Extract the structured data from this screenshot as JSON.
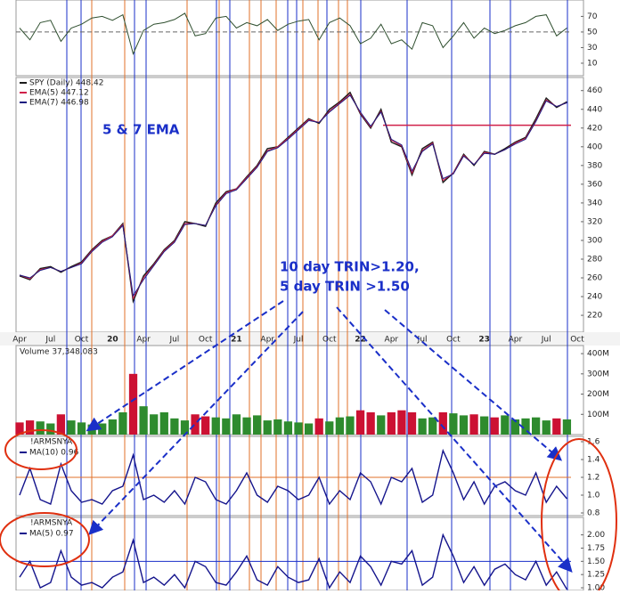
{
  "chart_data": [
    {
      "type": "line",
      "color": "#2f4f2f",
      "reference_line": 50,
      "ylim": [
        -6,
        91
      ],
      "yticks": [
        70,
        50,
        30,
        10
      ],
      "values": [
        55,
        40,
        62,
        65,
        38,
        55,
        60,
        68,
        70,
        65,
        72,
        22,
        52,
        60,
        62,
        66,
        74,
        45,
        48,
        68,
        70,
        55,
        62,
        58,
        66,
        52,
        60,
        64,
        66,
        40,
        62,
        68,
        58,
        35,
        42,
        60,
        35,
        40,
        28,
        62,
        58,
        30,
        45,
        62,
        42,
        55,
        48,
        52,
        58,
        62,
        70,
        72,
        45,
        55,
        null
      ]
    },
    {
      "type": "line",
      "reference_line": 423,
      "reference_color": "#d0204a",
      "ylim": [
        202,
        474
      ],
      "yticks": [
        460,
        440,
        420,
        400,
        380,
        360,
        340,
        320,
        300,
        280,
        260,
        240,
        220
      ],
      "categories": [
        "Apr",
        null,
        null,
        "Jul",
        null,
        null,
        "Oct",
        null,
        null,
        "20",
        null,
        null,
        "Apr",
        null,
        null,
        "Jul",
        null,
        null,
        "Oct",
        null,
        null,
        "21",
        null,
        null,
        "Apr",
        null,
        null,
        "Jul",
        null,
        null,
        "Oct",
        null,
        null,
        "22",
        null,
        null,
        "Apr",
        null,
        null,
        "Jul",
        null,
        null,
        "Oct",
        null,
        null,
        "23",
        null,
        null,
        "Apr",
        null,
        null,
        "Jul",
        null,
        null,
        "Oct"
      ],
      "annotations": [
        "5 & 7 EMA",
        "10 day TRIN>1.20,",
        "5 day TRIN >1.50"
      ],
      "series": [
        {
          "name": "SPY (Daily) 448.42",
          "color": "#1b1b1b",
          "values": [
            262,
            258,
            270,
            272,
            266,
            272,
            277,
            290,
            300,
            305,
            318,
            235,
            262,
            275,
            290,
            300,
            320,
            318,
            315,
            340,
            352,
            355,
            368,
            380,
            398,
            400,
            410,
            420,
            430,
            425,
            440,
            448,
            458,
            435,
            420,
            440,
            405,
            400,
            370,
            398,
            405,
            362,
            372,
            392,
            380,
            395,
            392,
            398,
            405,
            410,
            430,
            452,
            442,
            448,
            null
          ]
        },
        {
          "name": "EMA(5) 447.12",
          "color": "#d0204a",
          "values": [
            263,
            259,
            269,
            271,
            267,
            271,
            276,
            289,
            299,
            305,
            317,
            238,
            260,
            274,
            289,
            299,
            318,
            318,
            316,
            338,
            351,
            355,
            367,
            379,
            396,
            400,
            409,
            419,
            429,
            426,
            438,
            447,
            456,
            436,
            421,
            438,
            407,
            401,
            372,
            396,
            404,
            364,
            372,
            391,
            381,
            394,
            392,
            397,
            404,
            409,
            428,
            450,
            443,
            447,
            null
          ]
        },
        {
          "name": "EMA(7) 446.98",
          "color": "#1a1a80",
          "values": [
            263,
            260,
            268,
            271,
            267,
            271,
            275,
            288,
            298,
            304,
            316,
            241,
            258,
            273,
            288,
            298,
            317,
            318,
            316,
            337,
            350,
            354,
            366,
            378,
            395,
            399,
            408,
            418,
            428,
            426,
            437,
            446,
            455,
            437,
            422,
            437,
            408,
            402,
            374,
            395,
            403,
            366,
            371,
            390,
            381,
            393,
            392,
            397,
            403,
            408,
            427,
            449,
            443,
            447,
            null
          ]
        }
      ]
    },
    {
      "type": "bar",
      "color": "#cc1133",
      "up_color": "#2e8b2e",
      "ylim": [
        0,
        440000000
      ],
      "yticks": [
        {
          "value": 400000000,
          "label": "400M"
        },
        {
          "value": 300000000,
          "label": "300M"
        },
        {
          "value": 200000000,
          "label": "200M"
        },
        {
          "value": 100000000,
          "label": "100M"
        }
      ],
      "series": [
        {
          "name": "Volume 37,348,083",
          "values": [
            60000000,
            70000000,
            65000000,
            55000000,
            100000000,
            70000000,
            60000000,
            50000000,
            55000000,
            75000000,
            110000000,
            300000000,
            140000000,
            100000000,
            110000000,
            80000000,
            70000000,
            100000000,
            90000000,
            85000000,
            80000000,
            100000000,
            85000000,
            95000000,
            70000000,
            75000000,
            65000000,
            60000000,
            55000000,
            80000000,
            65000000,
            85000000,
            90000000,
            120000000,
            110000000,
            95000000,
            110000000,
            120000000,
            110000000,
            80000000,
            85000000,
            110000000,
            105000000,
            95000000,
            100000000,
            90000000,
            85000000,
            95000000,
            75000000,
            80000000,
            85000000,
            70000000,
            80000000,
            75000000,
            null
          ]
        }
      ]
    },
    {
      "type": "line",
      "title": "!ARMSNYA",
      "reference_line": 1.2,
      "reference_color": "#e0702a",
      "ylim": [
        0.77,
        1.66
      ],
      "yticks": [
        1.6,
        1.4,
        1.2,
        {
          "value": 1,
          "label": "1.0"
        },
        0.8
      ],
      "series": [
        {
          "name": "MA(10) 0.96",
          "color": "#14148c",
          "values": [
            1.0,
            1.3,
            0.95,
            0.9,
            1.35,
            1.05,
            0.92,
            0.95,
            0.9,
            1.05,
            1.1,
            1.45,
            0.95,
            1.0,
            0.92,
            1.05,
            0.9,
            1.2,
            1.15,
            0.95,
            0.9,
            1.05,
            1.25,
            1.0,
            0.92,
            1.1,
            1.05,
            0.95,
            1.0,
            1.2,
            0.9,
            1.05,
            0.95,
            1.25,
            1.15,
            0.9,
            1.2,
            1.15,
            1.3,
            0.92,
            1.0,
            1.5,
            1.25,
            0.95,
            1.15,
            0.9,
            1.1,
            1.15,
            1.05,
            1.0,
            1.25,
            0.92,
            1.1,
            0.96,
            null
          ]
        }
      ]
    },
    {
      "type": "line",
      "title": "!ARMSNYA",
      "reference_line": 1.5,
      "reference_color": "#1a2fc8",
      "ylim": [
        0.95,
        2.33
      ],
      "yticks": [
        {
          "value": 2,
          "label": "2.00"
        },
        {
          "value": 1.75,
          "label": "1.75"
        },
        {
          "value": 1.5,
          "label": "1.50"
        },
        {
          "value": 1.25,
          "label": "1.25"
        },
        {
          "value": 1,
          "label": "1.00"
        }
      ],
      "series": [
        {
          "name": "MA(5) 0.97",
          "color": "#14148c",
          "values": [
            1.2,
            1.5,
            1.0,
            1.1,
            1.7,
            1.2,
            1.05,
            1.1,
            1.0,
            1.2,
            1.3,
            1.9,
            1.1,
            1.2,
            1.05,
            1.25,
            1.0,
            1.5,
            1.4,
            1.1,
            1.05,
            1.3,
            1.6,
            1.15,
            1.05,
            1.4,
            1.2,
            1.1,
            1.15,
            1.55,
            1.0,
            1.3,
            1.1,
            1.6,
            1.4,
            1.05,
            1.5,
            1.45,
            1.7,
            1.05,
            1.2,
            2.0,
            1.6,
            1.1,
            1.4,
            1.05,
            1.35,
            1.45,
            1.25,
            1.15,
            1.5,
            1.05,
            1.3,
            0.97,
            null
          ]
        }
      ]
    }
  ]
}
